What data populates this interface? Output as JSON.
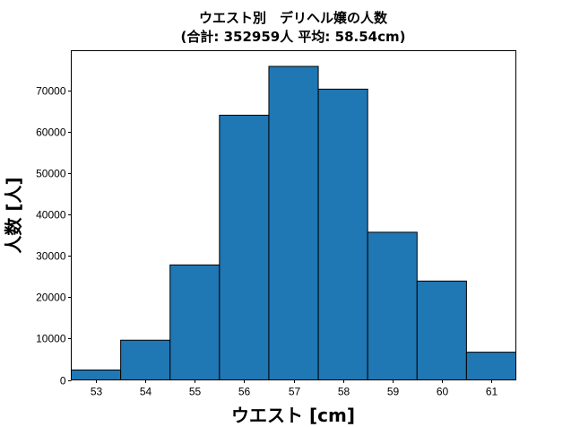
{
  "figure": {
    "title_line1": "ウエスト別　デリヘル嬢の人数",
    "title_line2": "(合計: 352959人 平均: 58.54cm)",
    "xlabel": "ウエスト [cm]",
    "ylabel": "人数 [人]"
  },
  "chart_data": {
    "type": "bar",
    "title": "ウエスト別　デリヘル嬢の人数 (合計: 352959人 平均: 58.54cm)",
    "xlabel": "ウエスト [cm]",
    "ylabel": "人数 [人]",
    "categories": [
      "53",
      "54",
      "55",
      "56",
      "57",
      "58",
      "59",
      "60",
      "61"
    ],
    "values": [
      2400,
      9600,
      27800,
      64000,
      75800,
      70300,
      35700,
      23900,
      6700
    ],
    "xlim": [
      52.5,
      61.5
    ],
    "ylim": [
      0,
      79600
    ],
    "xticks": [
      53,
      54,
      55,
      56,
      57,
      58,
      59,
      60,
      61
    ],
    "yticks": [
      0,
      10000,
      20000,
      30000,
      40000,
      50000,
      60000,
      70000
    ],
    "grid": false,
    "legend": null,
    "bar_color": "#1f77b4",
    "edge_color": "#000000"
  }
}
